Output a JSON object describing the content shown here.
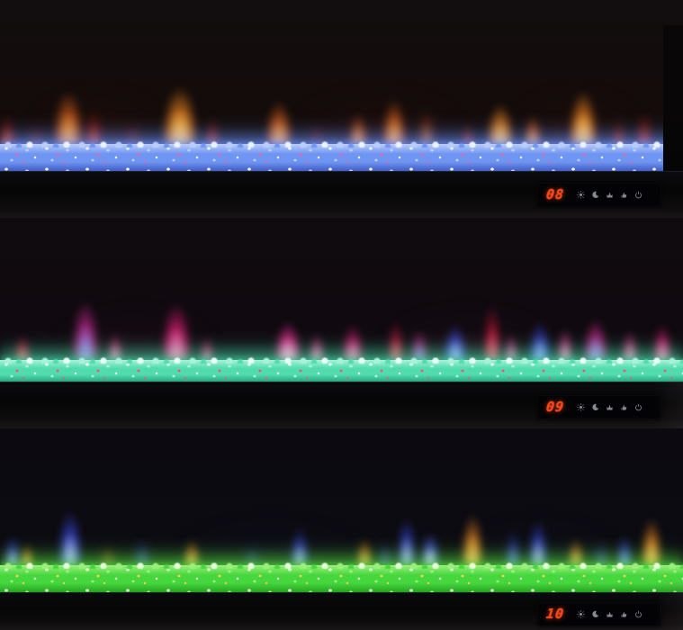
{
  "display": {
    "digit_color": "#ff4414",
    "icon_color": "#9aa3b0",
    "icons": [
      "brightness-icon",
      "sleep-timer-icon",
      "flame-effect-icon",
      "heater-icon",
      "power-icon"
    ]
  },
  "panels": [
    {
      "display_value": "08",
      "flame_theme": "orange-red flames over blue crystal bed",
      "bed": {
        "top": "#b9cdfb",
        "base": "#6f95f2",
        "dark": "#3752bc",
        "fleck": "#ff5aa0",
        "hi": "#eaf3ff",
        "glow": "rgba(110,150,255,0.5)"
      },
      "flames": [
        [
          110,
          190,
          80,
          "#6a1408",
          "#3a0a04",
          0.22,
          12
        ],
        [
          420,
          240,
          80,
          "#6a1408",
          "#3a0a04",
          0.2,
          12
        ],
        [
          640,
          170,
          80,
          "#6a1408",
          "#3a0a04",
          0.22,
          12
        ],
        [
          8,
          30,
          52,
          "#d8431a",
          "#7a1406",
          0.85,
          4
        ],
        [
          40,
          26,
          38,
          "#8a2410",
          "#4a0c04",
          0.8,
          5
        ],
        [
          76,
          46,
          88,
          "#ffb84d",
          "#e8641a",
          0.95,
          4
        ],
        [
          104,
          30,
          58,
          "#d8431a",
          "#7a1406",
          0.85,
          4
        ],
        [
          148,
          26,
          44,
          "#8a2410",
          "#4a0c04",
          0.7,
          5
        ],
        [
          200,
          54,
          95,
          "#ffd76a",
          "#ff8c1f",
          1,
          4
        ],
        [
          236,
          26,
          48,
          "#d8431a",
          "#7a1406",
          0.8,
          4
        ],
        [
          310,
          42,
          72,
          "#ffb84d",
          "#e8641a",
          0.95,
          4
        ],
        [
          352,
          24,
          40,
          "#8a2410",
          "#4a0c04",
          0.7,
          5
        ],
        [
          398,
          30,
          52,
          "#ffb84d",
          "#e8641a",
          0.85,
          4
        ],
        [
          438,
          38,
          74,
          "#ffb84d",
          "#e8641a",
          0.95,
          4
        ],
        [
          474,
          22,
          58,
          "#ffb84d",
          "#c84a12",
          0.7,
          5
        ],
        [
          520,
          24,
          40,
          "#d8431a",
          "#7a1406",
          0.7,
          4
        ],
        [
          556,
          42,
          68,
          "#ffd76a",
          "#ff8c1f",
          0.95,
          4
        ],
        [
          592,
          28,
          50,
          "#ffb84d",
          "#e8641a",
          0.85,
          4
        ],
        [
          648,
          44,
          88,
          "#ffd76a",
          "#ff8c1f",
          1,
          4
        ],
        [
          688,
          26,
          46,
          "#c03414",
          "#6a1205",
          0.8,
          4
        ],
        [
          716,
          30,
          56,
          "#c03414",
          "#7a1406",
          0.85,
          4
        ]
      ]
    },
    {
      "display_value": "09",
      "flame_theme": "pink-magenta-blue flames over teal crystal bed",
      "bed": {
        "top": "#a8f2d8",
        "base": "#52dcae",
        "dark": "#1e9a74",
        "fleck": "#ff4a90",
        "hi": "#eafff6",
        "glow": "rgba(80,230,180,0.45)"
      },
      "flames": [
        [
          150,
          220,
          70,
          "#70103a",
          "#38081c",
          0.18,
          12
        ],
        [
          520,
          240,
          70,
          "#70103a",
          "#38081c",
          0.18,
          12
        ],
        [
          25,
          26,
          42,
          "#ff5a70",
          "#c81038",
          0.85,
          4
        ],
        [
          95,
          42,
          95,
          "#8a9aff",
          "#d82a9a",
          0.95,
          4
        ],
        [
          128,
          24,
          44,
          "#ffa8d0",
          "#f03a9a",
          0.8,
          4
        ],
        [
          196,
          46,
          92,
          "#ff8ac0",
          "#e81878",
          0.95,
          4
        ],
        [
          230,
          22,
          40,
          "#ff8ac0",
          "#e81878",
          0.75,
          4
        ],
        [
          320,
          42,
          62,
          "#ffb0d8",
          "#ff2e9a",
          1,
          4
        ],
        [
          352,
          26,
          44,
          "#ffa8d0",
          "#f03a9a",
          0.8,
          4
        ],
        [
          392,
          34,
          58,
          "#ff8ac0",
          "#e81878",
          0.9,
          4
        ],
        [
          440,
          26,
          64,
          "#ff5a70",
          "#c81038",
          0.85,
          4
        ],
        [
          466,
          28,
          50,
          "#8a9aff",
          "#d82a9a",
          0.8,
          4
        ],
        [
          506,
          36,
          58,
          "#aab4ff",
          "#3848e8",
          0.95,
          4
        ],
        [
          547,
          28,
          88,
          "#ff5a70",
          "#c81038",
          0.9,
          4
        ],
        [
          568,
          22,
          44,
          "#ffa8d0",
          "#f03a9a",
          0.75,
          4
        ],
        [
          600,
          34,
          62,
          "#aab4ff",
          "#3848e8",
          0.9,
          4
        ],
        [
          628,
          24,
          52,
          "#ffa8d0",
          "#f03a9a",
          0.85,
          4
        ],
        [
          662,
          38,
          66,
          "#8a9aff",
          "#e02a9a",
          0.95,
          4
        ],
        [
          700,
          26,
          48,
          "#ffa8d0",
          "#f03a9a",
          0.8,
          4
        ],
        [
          736,
          30,
          58,
          "#ff8ac0",
          "#e81878",
          0.9,
          4
        ]
      ]
    },
    {
      "display_value": "10",
      "flame_theme": "blue-orange flames over green crystal bed",
      "bed": {
        "top": "#9af07a",
        "base": "#46d63e",
        "dark": "#1f9a1a",
        "fleck": "#ffd04a",
        "hi": "#e8ffdc",
        "glow": "rgba(90,230,70,0.45)"
      },
      "flames": [
        [
          300,
          260,
          60,
          "#101a50",
          "#080c28",
          0.25,
          12
        ],
        [
          600,
          220,
          60,
          "#101a50",
          "#080c28",
          0.22,
          12
        ],
        [
          14,
          26,
          48,
          "#c8d2ff",
          "#3a4ae8",
          0.85,
          4
        ],
        [
          30,
          22,
          36,
          "#ffc868",
          "#f08a1f",
          0.8,
          4
        ],
        [
          78,
          38,
          88,
          "#c8d2ff",
          "#3a4ae8",
          0.95,
          4
        ],
        [
          120,
          20,
          34,
          "#e89a40",
          "#a85a14",
          0.6,
          5
        ],
        [
          158,
          24,
          44,
          "#6a7af0",
          "#2a34a8",
          0.7,
          5
        ],
        [
          213,
          26,
          42,
          "#ffc868",
          "#f08a1f",
          0.85,
          4
        ],
        [
          280,
          20,
          34,
          "#6a7af0",
          "#2a34a8",
          0.55,
          5
        ],
        [
          333,
          30,
          60,
          "#c8d2ff",
          "#3a4ae8",
          0.85,
          4
        ],
        [
          405,
          26,
          44,
          "#ffc868",
          "#f08a1f",
          0.8,
          4
        ],
        [
          428,
          22,
          40,
          "#6a7af0",
          "#2a34a8",
          0.7,
          5
        ],
        [
          452,
          30,
          76,
          "#c8d2ff",
          "#3a4ae8",
          0.9,
          4
        ],
        [
          478,
          30,
          54,
          "#e8ecff",
          "#4a5af0",
          0.95,
          4
        ],
        [
          525,
          34,
          82,
          "#ffc868",
          "#f08a1f",
          0.95,
          4
        ],
        [
          570,
          26,
          58,
          "#6a7af0",
          "#2a34a8",
          0.8,
          4
        ],
        [
          598,
          30,
          72,
          "#c8d2ff",
          "#3a4ae8",
          0.9,
          4
        ],
        [
          640,
          26,
          44,
          "#ffc868",
          "#f08a1f",
          0.8,
          4
        ],
        [
          668,
          22,
          40,
          "#6a7af0",
          "#2a34a8",
          0.7,
          5
        ],
        [
          694,
          26,
          48,
          "#8a9aff",
          "#3a4ae8",
          0.85,
          4
        ],
        [
          724,
          32,
          76,
          "#ffc868",
          "#f08a1f",
          0.95,
          4
        ]
      ]
    }
  ]
}
